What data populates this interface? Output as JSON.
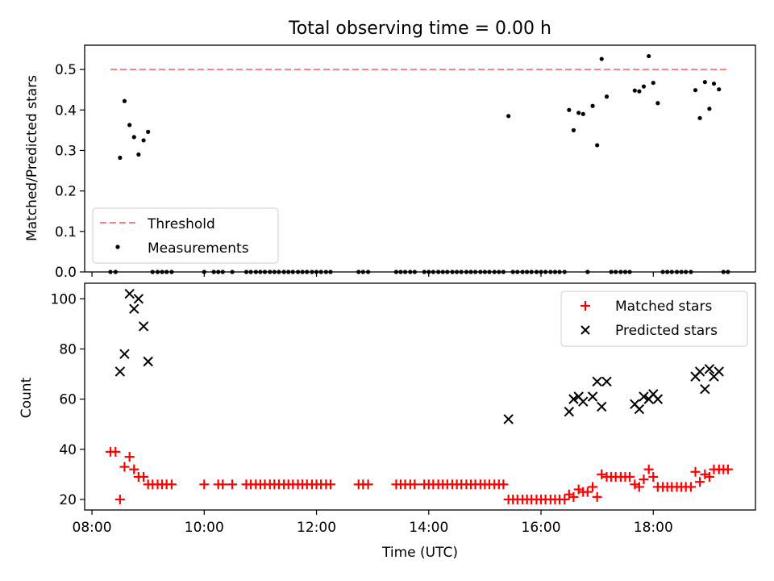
{
  "chart_data": [
    {
      "type": "scatter",
      "title": "Total observing time = 0.00 h",
      "xlabel": "",
      "ylabel": "Matched/Predicted stars",
      "ylim": [
        0,
        0.56
      ],
      "xlim": [
        7.87,
        19.82
      ],
      "yticks": [
        0.0,
        0.1,
        0.2,
        0.3,
        0.4,
        0.5
      ],
      "ytick_labels": [
        "0.0",
        "0.1",
        "0.2",
        "0.3",
        "0.4",
        "0.5"
      ],
      "threshold": {
        "name": "Threshold",
        "value": 0.5,
        "x": [
          8.33,
          19.35
        ],
        "color": "#ff7f7f"
      },
      "legend": {
        "placement": "lower-left",
        "entries": [
          "Threshold",
          "Measurements"
        ]
      },
      "series": [
        {
          "name": "Measurements",
          "color": "#000000",
          "points": [
            [
              8.33,
              0
            ],
            [
              8.42,
              0
            ],
            [
              8.5,
              0.282
            ],
            [
              8.58,
              0.422
            ],
            [
              8.67,
              0.363
            ],
            [
              8.75,
              0.333
            ],
            [
              8.83,
              0.29
            ],
            [
              8.92,
              0.325
            ],
            [
              9.0,
              0.346
            ],
            [
              9.08,
              0
            ],
            [
              9.17,
              0
            ],
            [
              9.25,
              0
            ],
            [
              9.33,
              0
            ],
            [
              9.42,
              0
            ],
            [
              10.0,
              0
            ],
            [
              10.17,
              0
            ],
            [
              10.25,
              0
            ],
            [
              10.33,
              0
            ],
            [
              10.5,
              0
            ],
            [
              10.75,
              0
            ],
            [
              10.83,
              0
            ],
            [
              10.92,
              0
            ],
            [
              11.0,
              0
            ],
            [
              11.08,
              0
            ],
            [
              11.17,
              0
            ],
            [
              11.25,
              0
            ],
            [
              11.33,
              0
            ],
            [
              11.42,
              0
            ],
            [
              11.5,
              0
            ],
            [
              11.58,
              0
            ],
            [
              11.67,
              0
            ],
            [
              11.75,
              0
            ],
            [
              11.83,
              0
            ],
            [
              11.92,
              0
            ],
            [
              12.0,
              0
            ],
            [
              12.08,
              0
            ],
            [
              12.17,
              0
            ],
            [
              12.25,
              0
            ],
            [
              12.75,
              0
            ],
            [
              12.83,
              0
            ],
            [
              12.92,
              0
            ],
            [
              13.42,
              0
            ],
            [
              13.5,
              0
            ],
            [
              13.58,
              0
            ],
            [
              13.67,
              0
            ],
            [
              13.75,
              0
            ],
            [
              13.92,
              0
            ],
            [
              14.0,
              0
            ],
            [
              14.08,
              0
            ],
            [
              14.17,
              0
            ],
            [
              14.25,
              0
            ],
            [
              14.33,
              0
            ],
            [
              14.42,
              0
            ],
            [
              14.5,
              0
            ],
            [
              14.58,
              0
            ],
            [
              14.67,
              0
            ],
            [
              14.75,
              0
            ],
            [
              14.83,
              0
            ],
            [
              14.92,
              0
            ],
            [
              15.0,
              0
            ],
            [
              15.08,
              0
            ],
            [
              15.17,
              0
            ],
            [
              15.25,
              0
            ],
            [
              15.33,
              0
            ],
            [
              15.42,
              0.385
            ],
            [
              15.5,
              0
            ],
            [
              15.58,
              0
            ],
            [
              15.67,
              0
            ],
            [
              15.75,
              0
            ],
            [
              15.83,
              0
            ],
            [
              15.92,
              0
            ],
            [
              16.0,
              0
            ],
            [
              16.08,
              0
            ],
            [
              16.17,
              0
            ],
            [
              16.25,
              0
            ],
            [
              16.33,
              0
            ],
            [
              16.42,
              0
            ],
            [
              16.5,
              0.4
            ],
            [
              16.58,
              0.35
            ],
            [
              16.67,
              0.393
            ],
            [
              16.75,
              0.39
            ],
            [
              16.83,
              0
            ],
            [
              16.92,
              0.41
            ],
            [
              17.0,
              0.313
            ],
            [
              17.08,
              0.526
            ],
            [
              17.17,
              0.433
            ],
            [
              17.25,
              0
            ],
            [
              17.33,
              0
            ],
            [
              17.42,
              0
            ],
            [
              17.5,
              0
            ],
            [
              17.58,
              0
            ],
            [
              17.67,
              0.448
            ],
            [
              17.75,
              0.446
            ],
            [
              17.83,
              0.458
            ],
            [
              17.92,
              0.533
            ],
            [
              18.0,
              0.467
            ],
            [
              18.08,
              0.417
            ],
            [
              18.17,
              0
            ],
            [
              18.25,
              0
            ],
            [
              18.33,
              0
            ],
            [
              18.42,
              0
            ],
            [
              18.5,
              0
            ],
            [
              18.58,
              0
            ],
            [
              18.67,
              0
            ],
            [
              18.75,
              0.449
            ],
            [
              18.83,
              0.38
            ],
            [
              18.92,
              0.469
            ],
            [
              19.0,
              0.403
            ],
            [
              19.08,
              0.465
            ],
            [
              19.17,
              0.451
            ],
            [
              19.25,
              0
            ],
            [
              19.33,
              0
            ]
          ]
        }
      ]
    },
    {
      "type": "scatter",
      "title": "",
      "xlabel": "Time (UTC)",
      "ylabel": "Count",
      "ylim": [
        15.8,
        106.2
      ],
      "xlim": [
        7.87,
        19.82
      ],
      "xticks": [
        8,
        10,
        12,
        14,
        16,
        18
      ],
      "xtick_labels": [
        "08:00",
        "10:00",
        "12:00",
        "14:00",
        "16:00",
        "18:00"
      ],
      "yticks": [
        20,
        40,
        60,
        80,
        100
      ],
      "ytick_labels": [
        "20",
        "40",
        "60",
        "80",
        "100"
      ],
      "legend": {
        "placement": "upper-right",
        "entries": [
          "Matched stars",
          "Predicted stars"
        ]
      },
      "series": [
        {
          "name": "Matched stars",
          "color": "#ff0000",
          "marker": "plus",
          "points": [
            [
              8.33,
              39
            ],
            [
              8.42,
              39
            ],
            [
              8.5,
              20
            ],
            [
              8.58,
              33
            ],
            [
              8.67,
              37
            ],
            [
              8.75,
              32
            ],
            [
              8.83,
              29
            ],
            [
              8.92,
              29
            ],
            [
              9.0,
              26
            ],
            [
              9.08,
              26
            ],
            [
              9.17,
              26
            ],
            [
              9.25,
              26
            ],
            [
              9.33,
              26
            ],
            [
              9.42,
              26
            ],
            [
              10.0,
              26
            ],
            [
              10.25,
              26
            ],
            [
              10.33,
              26
            ],
            [
              10.5,
              26
            ],
            [
              10.75,
              26
            ],
            [
              10.83,
              26
            ],
            [
              10.92,
              26
            ],
            [
              11.0,
              26
            ],
            [
              11.08,
              26
            ],
            [
              11.17,
              26
            ],
            [
              11.25,
              26
            ],
            [
              11.33,
              26
            ],
            [
              11.42,
              26
            ],
            [
              11.5,
              26
            ],
            [
              11.58,
              26
            ],
            [
              11.67,
              26
            ],
            [
              11.75,
              26
            ],
            [
              11.83,
              26
            ],
            [
              11.92,
              26
            ],
            [
              12.0,
              26
            ],
            [
              12.08,
              26
            ],
            [
              12.17,
              26
            ],
            [
              12.25,
              26
            ],
            [
              12.75,
              26
            ],
            [
              12.83,
              26
            ],
            [
              12.92,
              26
            ],
            [
              13.42,
              26
            ],
            [
              13.5,
              26
            ],
            [
              13.58,
              26
            ],
            [
              13.67,
              26
            ],
            [
              13.75,
              26
            ],
            [
              13.92,
              26
            ],
            [
              14.0,
              26
            ],
            [
              14.08,
              26
            ],
            [
              14.17,
              26
            ],
            [
              14.25,
              26
            ],
            [
              14.33,
              26
            ],
            [
              14.42,
              26
            ],
            [
              14.5,
              26
            ],
            [
              14.58,
              26
            ],
            [
              14.67,
              26
            ],
            [
              14.75,
              26
            ],
            [
              14.83,
              26
            ],
            [
              14.92,
              26
            ],
            [
              15.0,
              26
            ],
            [
              15.08,
              26
            ],
            [
              15.17,
              26
            ],
            [
              15.25,
              26
            ],
            [
              15.33,
              26
            ],
            [
              15.42,
              20
            ],
            [
              15.5,
              20
            ],
            [
              15.58,
              20
            ],
            [
              15.67,
              20
            ],
            [
              15.75,
              20
            ],
            [
              15.83,
              20
            ],
            [
              15.92,
              20
            ],
            [
              16.0,
              20
            ],
            [
              16.08,
              20
            ],
            [
              16.17,
              20
            ],
            [
              16.25,
              20
            ],
            [
              16.33,
              20
            ],
            [
              16.42,
              20
            ],
            [
              16.5,
              22
            ],
            [
              16.58,
              21
            ],
            [
              16.67,
              24
            ],
            [
              16.75,
              23
            ],
            [
              16.83,
              23
            ],
            [
              16.92,
              25
            ],
            [
              17.0,
              21
            ],
            [
              17.08,
              30
            ],
            [
              17.17,
              29
            ],
            [
              17.25,
              29
            ],
            [
              17.33,
              29
            ],
            [
              17.42,
              29
            ],
            [
              17.5,
              29
            ],
            [
              17.58,
              29
            ],
            [
              17.67,
              26
            ],
            [
              17.75,
              25
            ],
            [
              17.83,
              28
            ],
            [
              17.92,
              32
            ],
            [
              18.0,
              29
            ],
            [
              18.08,
              25
            ],
            [
              18.17,
              25
            ],
            [
              18.25,
              25
            ],
            [
              18.33,
              25
            ],
            [
              18.42,
              25
            ],
            [
              18.5,
              25
            ],
            [
              18.58,
              25
            ],
            [
              18.67,
              25
            ],
            [
              18.75,
              31
            ],
            [
              18.83,
              27
            ],
            [
              18.92,
              30
            ],
            [
              19.0,
              29
            ],
            [
              19.08,
              32
            ],
            [
              19.17,
              32
            ],
            [
              19.25,
              32
            ],
            [
              19.33,
              32
            ]
          ]
        },
        {
          "name": "Predicted stars",
          "color": "#000000",
          "marker": "x",
          "points": [
            [
              8.5,
              71
            ],
            [
              8.58,
              78
            ],
            [
              8.67,
              102
            ],
            [
              8.75,
              96
            ],
            [
              8.83,
              100
            ],
            [
              8.92,
              89
            ],
            [
              9.0,
              75
            ],
            [
              15.42,
              52
            ],
            [
              16.5,
              55
            ],
            [
              16.58,
              60
            ],
            [
              16.67,
              61
            ],
            [
              16.75,
              59
            ],
            [
              16.92,
              61
            ],
            [
              17.0,
              67
            ],
            [
              17.08,
              57
            ],
            [
              17.17,
              67
            ],
            [
              17.67,
              58
            ],
            [
              17.75,
              56
            ],
            [
              17.83,
              61
            ],
            [
              17.92,
              60
            ],
            [
              18.0,
              62
            ],
            [
              18.08,
              60
            ],
            [
              18.75,
              69
            ],
            [
              18.83,
              71
            ],
            [
              18.92,
              64
            ],
            [
              19.0,
              72
            ],
            [
              19.08,
              69
            ],
            [
              19.17,
              71
            ]
          ]
        }
      ]
    }
  ]
}
